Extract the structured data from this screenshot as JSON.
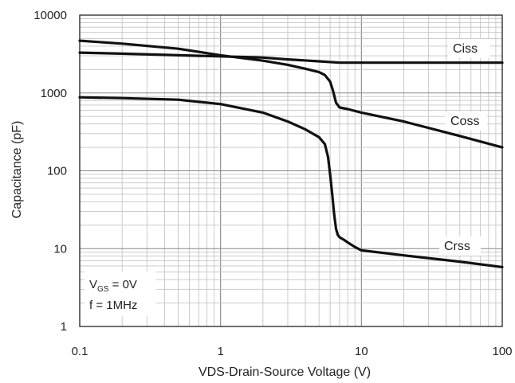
{
  "chart_data": {
    "type": "line",
    "title": "",
    "xlabel": "VDS-Drain-Source  Voltage  (V)",
    "ylabel": "Capacitance  (pF)",
    "xscale": "log",
    "yscale": "log",
    "xlim": [
      0.1,
      100
    ],
    "ylim": [
      1,
      10000
    ],
    "grid": true,
    "x_tick_labels": [
      "0.1",
      "1",
      "10",
      "100"
    ],
    "y_tick_labels": [
      "1",
      "10",
      "100",
      "1000",
      "10000"
    ],
    "annotations": {
      "condition_vgs_main": "V",
      "condition_vgs_sub": "GS",
      "condition_vgs_rest": " = 0V",
      "condition_freq": "f = 1MHz"
    },
    "series": [
      {
        "name": "Ciss",
        "x": [
          0.1,
          0.2,
          0.5,
          1,
          1.5,
          2,
          3,
          5,
          7,
          10,
          20,
          50,
          100
        ],
        "y": [
          3300,
          3200,
          3050,
          2950,
          2900,
          2850,
          2700,
          2550,
          2450,
          2450,
          2450,
          2450,
          2450
        ]
      },
      {
        "name": "Coss",
        "x": [
          0.1,
          0.2,
          0.5,
          1,
          2,
          3,
          4,
          5,
          5.5,
          6,
          6.3,
          6.6,
          7,
          8,
          10,
          20,
          50,
          100
        ],
        "y": [
          4700,
          4300,
          3700,
          3050,
          2600,
          2300,
          2050,
          1850,
          1700,
          1400,
          1050,
          750,
          650,
          620,
          560,
          430,
          280,
          200
        ]
      },
      {
        "name": "Crss",
        "x": [
          0.1,
          0.2,
          0.5,
          1,
          2,
          3,
          4,
          5,
          5.5,
          5.8,
          6,
          6.2,
          6.4,
          6.6,
          6.8,
          7,
          7.5,
          8,
          9,
          10,
          20,
          50,
          100
        ],
        "y": [
          880,
          860,
          820,
          720,
          560,
          430,
          340,
          270,
          220,
          150,
          90,
          50,
          28,
          18,
          15,
          14,
          13,
          12,
          10.5,
          9.5,
          8.2,
          6.8,
          5.8
        ]
      }
    ]
  }
}
